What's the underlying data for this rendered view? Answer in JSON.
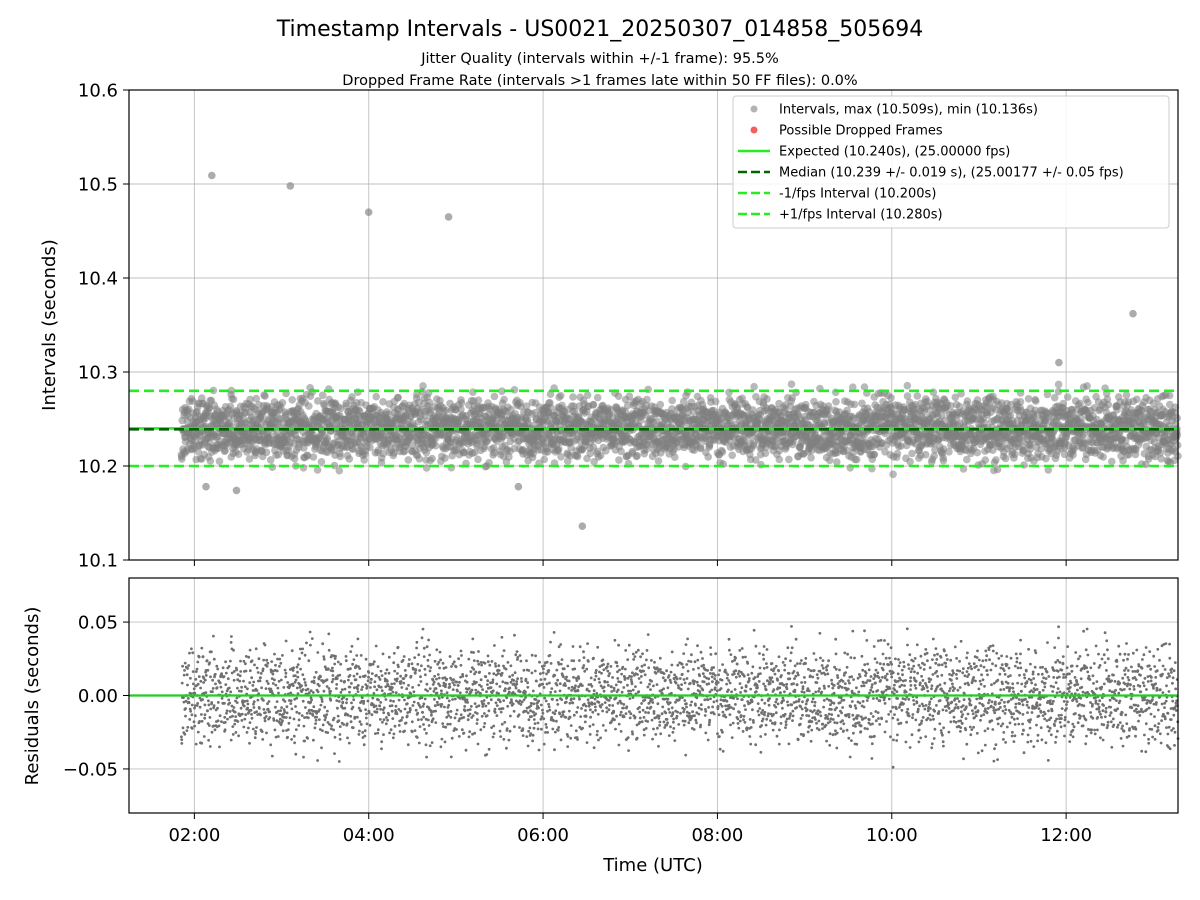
{
  "chart_data": [
    {
      "type": "scatter",
      "title": "Timestamp Intervals - US0021_20250307_014858_505694",
      "subtitle_lines": [
        "Jitter Quality (intervals within +/-1 frame): 95.5%",
        "Dropped Frame Rate (intervals >1 frames late within 50 FF files): 0.0%"
      ],
      "ylabel": "Intervals (seconds)",
      "ylim": [
        10.1,
        10.6
      ],
      "yticks": [
        "10.1",
        "10.2",
        "10.3",
        "10.4",
        "10.5",
        "10.6"
      ],
      "grid": true,
      "legend_placement": "top-right",
      "legend": [
        "Intervals, max (10.509s), min (10.136s)",
        "Possible Dropped Frames",
        "Expected (10.240s), (25.00000 fps)",
        "Median (10.239 +/- 0.019 s), (25.00177 +/- 0.05 fps)",
        "-1/fps Interval (10.200s)",
        "+1/fps Interval (10.280s)"
      ],
      "series": [
        {
          "name": "Intervals, max (10.509s), min (10.136s)",
          "color": "#808080",
          "distribution": {
            "center": 10.24,
            "spread": 0.019,
            "count": 4000
          }
        },
        {
          "name": "Possible Dropped Frames",
          "color": "#f06060",
          "count": 0
        }
      ],
      "outliers": [
        {
          "time": "02:12",
          "value": 10.509
        },
        {
          "time": "03:06",
          "value": 10.498
        },
        {
          "time": "04:00",
          "value": 10.47
        },
        {
          "time": "04:55",
          "value": 10.465
        },
        {
          "time": "12:46",
          "value": 10.362
        },
        {
          "time": "11:55",
          "value": 10.31
        },
        {
          "time": "06:27",
          "value": 10.136
        },
        {
          "time": "02:29",
          "value": 10.174
        },
        {
          "time": "02:08",
          "value": 10.178
        },
        {
          "time": "05:43",
          "value": 10.178
        }
      ],
      "reference_lines": [
        {
          "name": "Expected (10.240s), (25.00000 fps)",
          "value": 10.24,
          "color": "#22ee22",
          "style": "solid"
        },
        {
          "name": "Median (10.239 +/- 0.019 s), (25.00177 +/- 0.05 fps)",
          "value": 10.239,
          "color": "#006400",
          "style": "dashed"
        },
        {
          "name": "-1/fps Interval (10.200s)",
          "value": 10.2,
          "color": "#22ee22",
          "style": "dashed"
        },
        {
          "name": "+1/fps Interval (10.280s)",
          "value": 10.28,
          "color": "#22ee22",
          "style": "dashed"
        }
      ]
    },
    {
      "type": "scatter",
      "ylabel": "Residuals (seconds)",
      "xlabel": "Time (UTC)",
      "ylim": [
        -0.08,
        0.08
      ],
      "yticks": [
        "−0.05",
        "0.00",
        "0.05"
      ],
      "xlim": [
        "01:15",
        "13:17"
      ],
      "xticks": [
        "02:00",
        "04:00",
        "06:00",
        "08:00",
        "10:00",
        "12:00"
      ],
      "grid": true,
      "series": [
        {
          "name": "Residuals",
          "color": "#707070",
          "distribution": {
            "center": 0.0,
            "spread": 0.019,
            "count": 4000
          }
        }
      ],
      "reference_lines": [
        {
          "value": 0.0,
          "color": "#22cc22",
          "style": "solid"
        }
      ],
      "time_range": {
        "start": "01:51",
        "end": "13:17"
      }
    }
  ]
}
